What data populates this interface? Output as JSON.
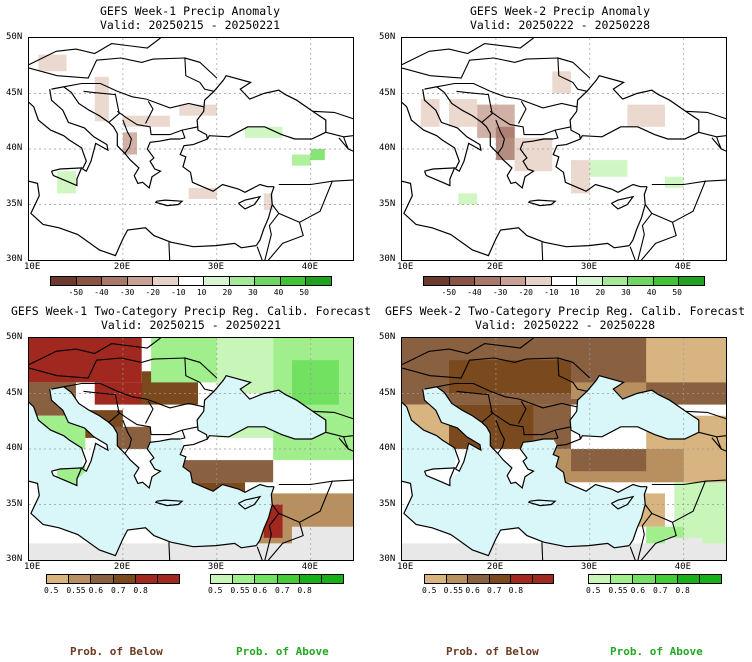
{
  "panels": [
    {
      "title": "GEFS Week-1 Precip Anomaly",
      "valid": "Valid: 20250215 - 20250221"
    },
    {
      "title": "GEFS Week-2 Precip Anomaly",
      "valid": "Valid: 20250222 - 20250228"
    },
    {
      "title": "GEFS Week-1 Two-Category Precip Reg. Calib. Forecast",
      "valid": "Valid: 20250215 - 20250221"
    },
    {
      "title": "GEFS Week-2 Two-Category Precip Reg. Calib. Forecast",
      "valid": "Valid: 20250222 - 20250228"
    }
  ],
  "lat_labels": [
    "50N",
    "45N",
    "40N",
    "35N",
    "30N"
  ],
  "lon_labels": [
    "10E",
    "20E",
    "30E",
    "40E"
  ],
  "anomaly_scale": {
    "labels": [
      "-50",
      "-40",
      "-30",
      "-20",
      "-10",
      "10",
      "20",
      "30",
      "40",
      "50"
    ],
    "colors": [
      "#6b3a2e",
      "#8a5445",
      "#a8786a",
      "#c9a296",
      "#e8d2c8",
      "#ffffff",
      "#d6f5d0",
      "#a6e89a",
      "#6fd662",
      "#3ec436",
      "#1ea31e"
    ]
  },
  "below_scale": {
    "labels": [
      "0.5",
      "0.55",
      "0.6",
      "0.7",
      "0.8"
    ],
    "colors": [
      "#d8b480",
      "#b88f5f",
      "#8a6140",
      "#7a4a1e",
      "#a0281e",
      "#a0281e"
    ]
  },
  "above_scale": {
    "labels": [
      "0.5",
      "0.55",
      "0.6",
      "0.7",
      "0.8"
    ],
    "colors": [
      "#c8f5b8",
      "#a0ee8c",
      "#72e060",
      "#42cc36",
      "#18b018",
      "#18b018"
    ]
  },
  "legend": {
    "below": "Prob. of Below",
    "above": "Prob. of Above"
  },
  "colors": {
    "sea": "#d9f7f8",
    "land_gray": "#e8e8e8",
    "below_text": "#6b3a22",
    "above_text": "#22a822"
  }
}
